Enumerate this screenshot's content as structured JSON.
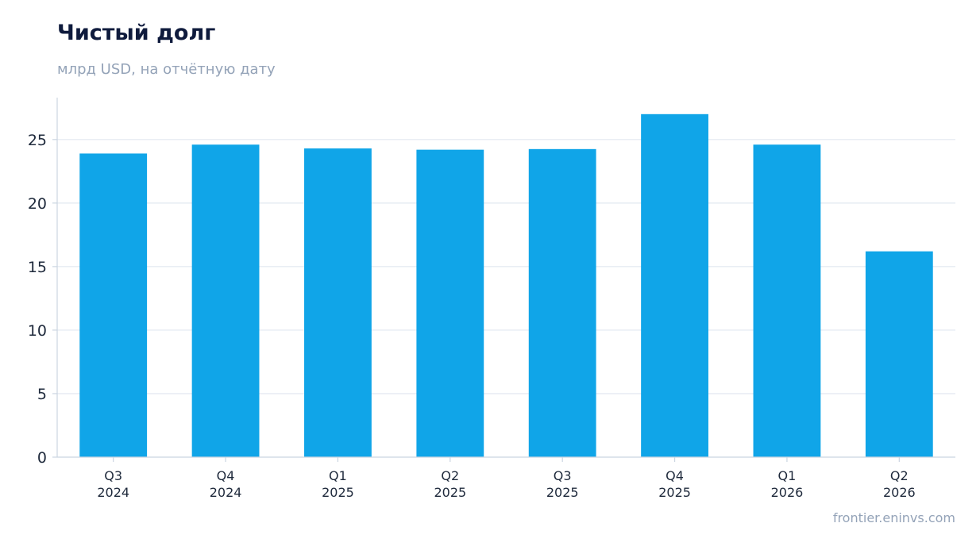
{
  "header": {
    "title": "Чистый долг",
    "subtitle": "млрд USD, на отчётную дату"
  },
  "footer": {
    "source": "frontier.eninvs.com"
  },
  "colors": {
    "bar": "#10a5e8",
    "grid": "#e2e8f0",
    "axis": "#cbd5e1",
    "text": "#1e293b",
    "title": "#0f1b3d",
    "muted": "#94a3b8"
  },
  "chart_data": {
    "type": "bar",
    "title": "Чистый долг",
    "subtitle": "млрд USD, на отчётную дату",
    "categories": [
      [
        "Q3",
        "2024"
      ],
      [
        "Q4",
        "2024"
      ],
      [
        "Q1",
        "2025"
      ],
      [
        "Q2",
        "2025"
      ],
      [
        "Q3",
        "2025"
      ],
      [
        "Q4",
        "2025"
      ],
      [
        "Q1",
        "2026"
      ],
      [
        "Q2",
        "2026"
      ]
    ],
    "values": [
      23.9,
      24.6,
      24.3,
      24.2,
      24.25,
      27.0,
      24.6,
      16.2
    ],
    "yticks": [
      0,
      5,
      10,
      15,
      20,
      25
    ],
    "ylim": [
      0,
      28.3
    ],
    "grid": true,
    "legend": false
  }
}
